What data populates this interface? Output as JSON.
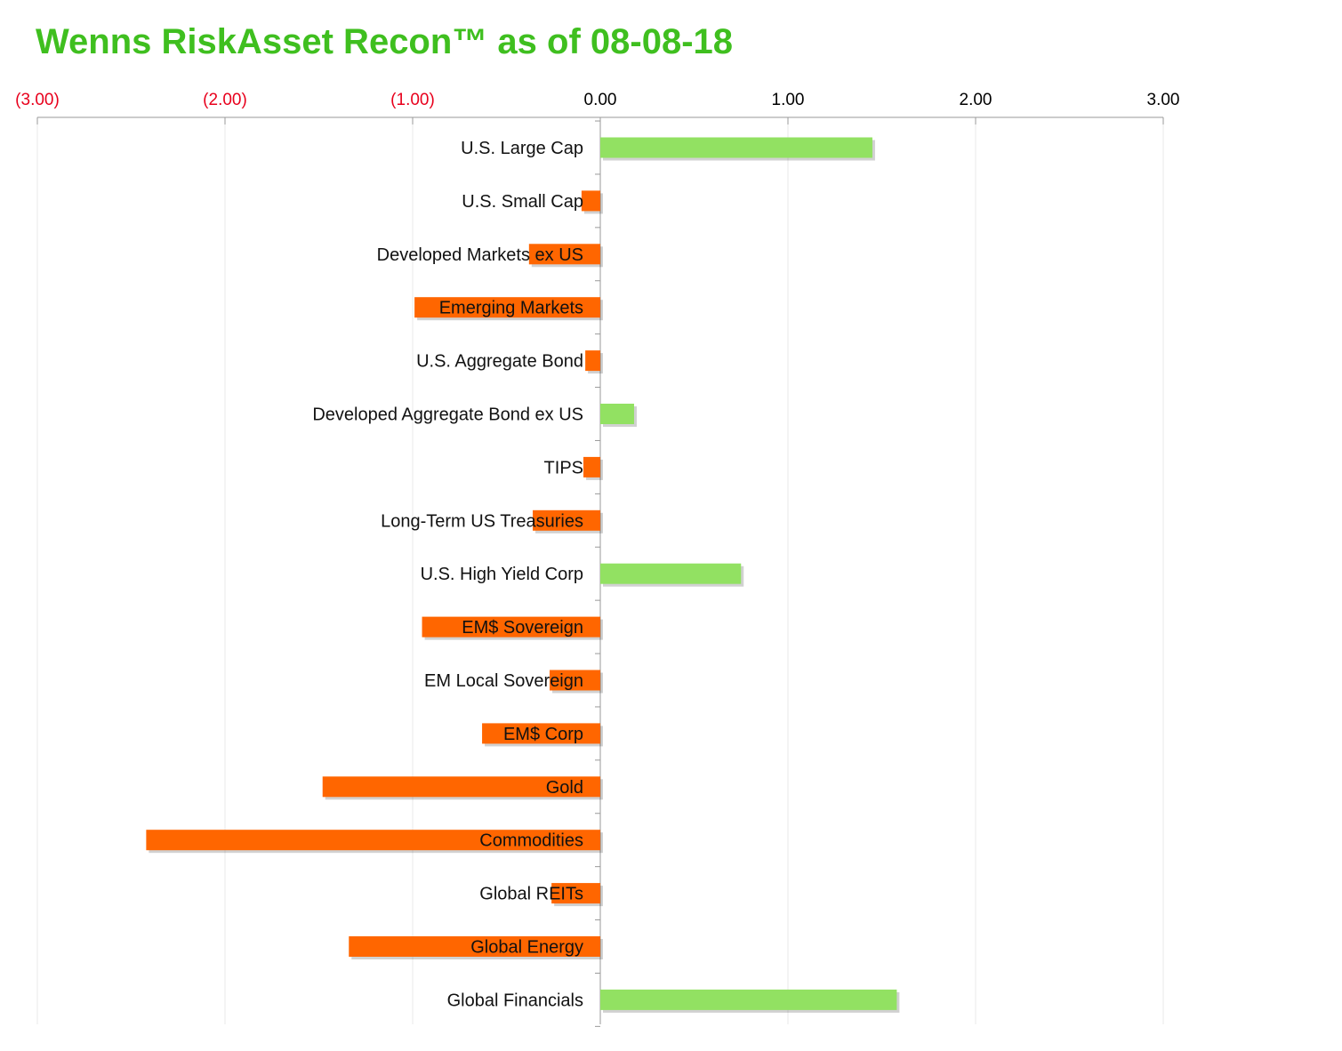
{
  "chart_data": {
    "type": "bar",
    "orientation": "horizontal",
    "title": "Wenns RiskAsset Recon™ as of 08-08-18",
    "xlabel": "",
    "ylabel": "",
    "xlim": [
      -3,
      3
    ],
    "ticks": [
      {
        "value": -3,
        "label": "(3.00)"
      },
      {
        "value": -2,
        "label": "(2.00)"
      },
      {
        "value": -1,
        "label": "(1.00)"
      },
      {
        "value": 0,
        "label": "0.00"
      },
      {
        "value": 1,
        "label": "1.00"
      },
      {
        "value": 2,
        "label": "2.00"
      },
      {
        "value": 3,
        "label": "3.00"
      }
    ],
    "tick_position": "top",
    "grid": true,
    "legend": "none",
    "categories": [
      "U.S. Large Cap",
      "U.S. Small Cap",
      "Developed Markets ex US",
      "Emerging Markets",
      "U.S. Aggregate Bond",
      "Developed Aggregate Bond ex US",
      "TIPS",
      "Long-Term US Treasuries",
      "U.S. High Yield Corp",
      "EM$ Sovereign",
      "EM Local Sovereign",
      "EM$ Corp",
      "Gold",
      "Commodities",
      "Global REITs",
      "Global Energy",
      "Global Financials"
    ],
    "values": [
      1.45,
      -0.1,
      -0.38,
      -0.99,
      -0.08,
      0.18,
      -0.09,
      -0.36,
      0.75,
      -0.95,
      -0.27,
      -0.63,
      -1.48,
      -2.42,
      -0.26,
      -1.34,
      1.58
    ]
  },
  "colors": {
    "title": "#3FBF1F",
    "positive_bar": "#92E162",
    "negative_bar": "#FF6600",
    "negative_tick_label": "#E8001C",
    "positive_tick_label": "#000000",
    "axis": "#999999",
    "grid": "#E8E8E8",
    "category_label": "#111111"
  }
}
